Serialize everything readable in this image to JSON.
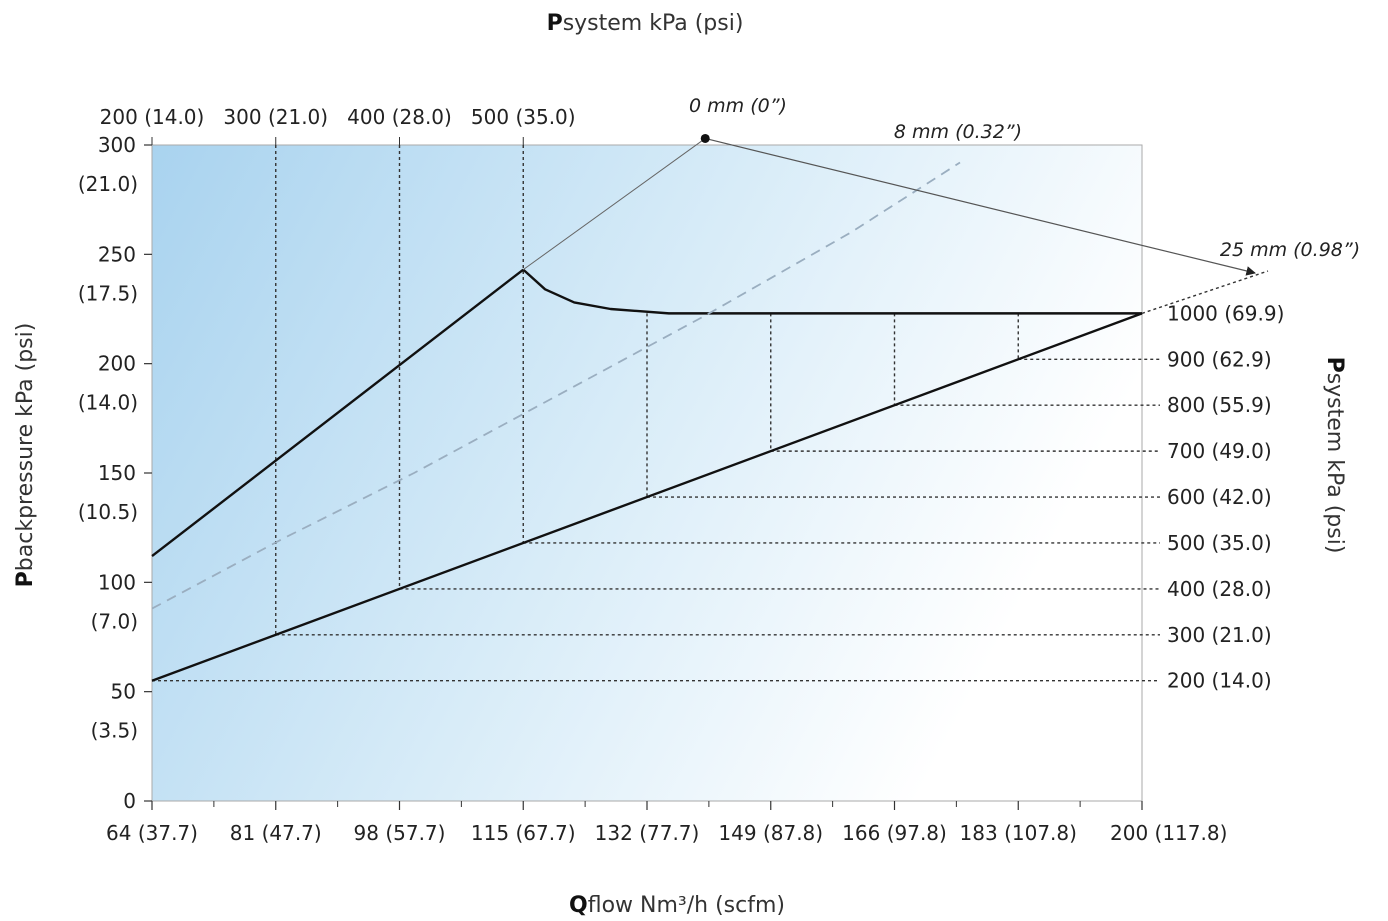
{
  "chart_data": {
    "type": "line",
    "title": "",
    "top_axis": {
      "title_bold": "P",
      "title_rest": "system kPa (psi)",
      "tick_labels": [
        "200 (14.0)",
        "300 (21.0)",
        "400 (28.0)",
        "500 (35.0)"
      ],
      "tick_x": [
        64,
        81,
        98,
        115
      ]
    },
    "x_axis": {
      "title_bold": "Q",
      "title_rest": "flow Nm³/h (scfm)",
      "range": [
        64,
        200
      ],
      "ticks": [
        64,
        81,
        98,
        115,
        132,
        149,
        166,
        183,
        200
      ],
      "tick_labels": [
        "64 (37.7)",
        "81 (47.7)",
        "98 (57.7)",
        "115 (67.7)",
        "132 (77.7)",
        "149 (87.8)",
        "166 (97.8)",
        "183 (107.8)",
        "200 (117.8)"
      ]
    },
    "y_axis": {
      "title_bold": "P",
      "title_rest": "backpressure kPa (psi)",
      "range": [
        0,
        300
      ],
      "ticks": [
        0,
        50,
        100,
        150,
        200,
        250,
        300
      ],
      "tick_labels_kpa": [
        "0",
        "50",
        "100",
        "150",
        "200",
        "250",
        "300"
      ],
      "tick_labels_psi": [
        "",
        "(3.5)",
        "(7.0)",
        "(10.5)",
        "(14.0)",
        "(17.5)",
        "(21.0)"
      ]
    },
    "right_axis": {
      "title_bold": "P",
      "title_rest": "system kPa (psi)",
      "tick_labels": [
        "200 (14.0)",
        "300 (21.0)",
        "400 (28.0)",
        "500 (35.0)",
        "600 (42.0)",
        "700 (49.0)",
        "800 (55.9)",
        "900 (62.9)",
        "1000 (69.9)"
      ],
      "tick_y": [
        55,
        76,
        97,
        118,
        139,
        160,
        181,
        202,
        223
      ]
    },
    "series": [
      {
        "style": "solid-upper",
        "points": [
          [
            64,
            112
          ],
          [
            115,
            243
          ]
        ]
      },
      {
        "style": "solid-curve",
        "points": [
          [
            115,
            243
          ],
          [
            118,
            234
          ],
          [
            122,
            228
          ],
          [
            127,
            225
          ],
          [
            135,
            223
          ],
          [
            150,
            223
          ],
          [
            200,
            223
          ]
        ]
      },
      {
        "style": "solid-lower",
        "points": [
          [
            64,
            55
          ],
          [
            200,
            223
          ]
        ]
      },
      {
        "style": "dashed",
        "points": [
          [
            64,
            88
          ],
          [
            82,
            120
          ],
          [
            100,
            150
          ],
          [
            120,
            186
          ],
          [
            140,
            222
          ],
          [
            160,
            260
          ],
          [
            175,
            292
          ]
        ]
      }
    ],
    "vertical_guides": [
      {
        "x": 81,
        "y_top": 300,
        "y_bottom": 76
      },
      {
        "x": 98,
        "y_top": 300,
        "y_bottom": 97
      },
      {
        "x": 115,
        "y_top": 300,
        "y_bottom": 118
      },
      {
        "x": 132,
        "y_top": 223,
        "y_bottom": 139
      },
      {
        "x": 149,
        "y_top": 223,
        "y_bottom": 160
      },
      {
        "x": 166,
        "y_top": 223,
        "y_bottom": 181
      },
      {
        "x": 183,
        "y_top": 223,
        "y_bottom": 202
      }
    ],
    "horizontal_guides_y": [
      55,
      76,
      97,
      118,
      139,
      160,
      181,
      202
    ],
    "annotations": [
      {
        "text": "0 mm (0”)"
      },
      {
        "text": "8 mm (0.32”)"
      },
      {
        "text": "25 mm (0.98”)"
      }
    ],
    "marker_point": [
      140,
      303
    ],
    "colors": {
      "fill_left": "#a9d3ef",
      "fill_right": "#ffffff",
      "line": "#111111",
      "dashed": "#9aaec0",
      "guide": "#333333"
    },
    "grid": false,
    "legend": "none"
  }
}
